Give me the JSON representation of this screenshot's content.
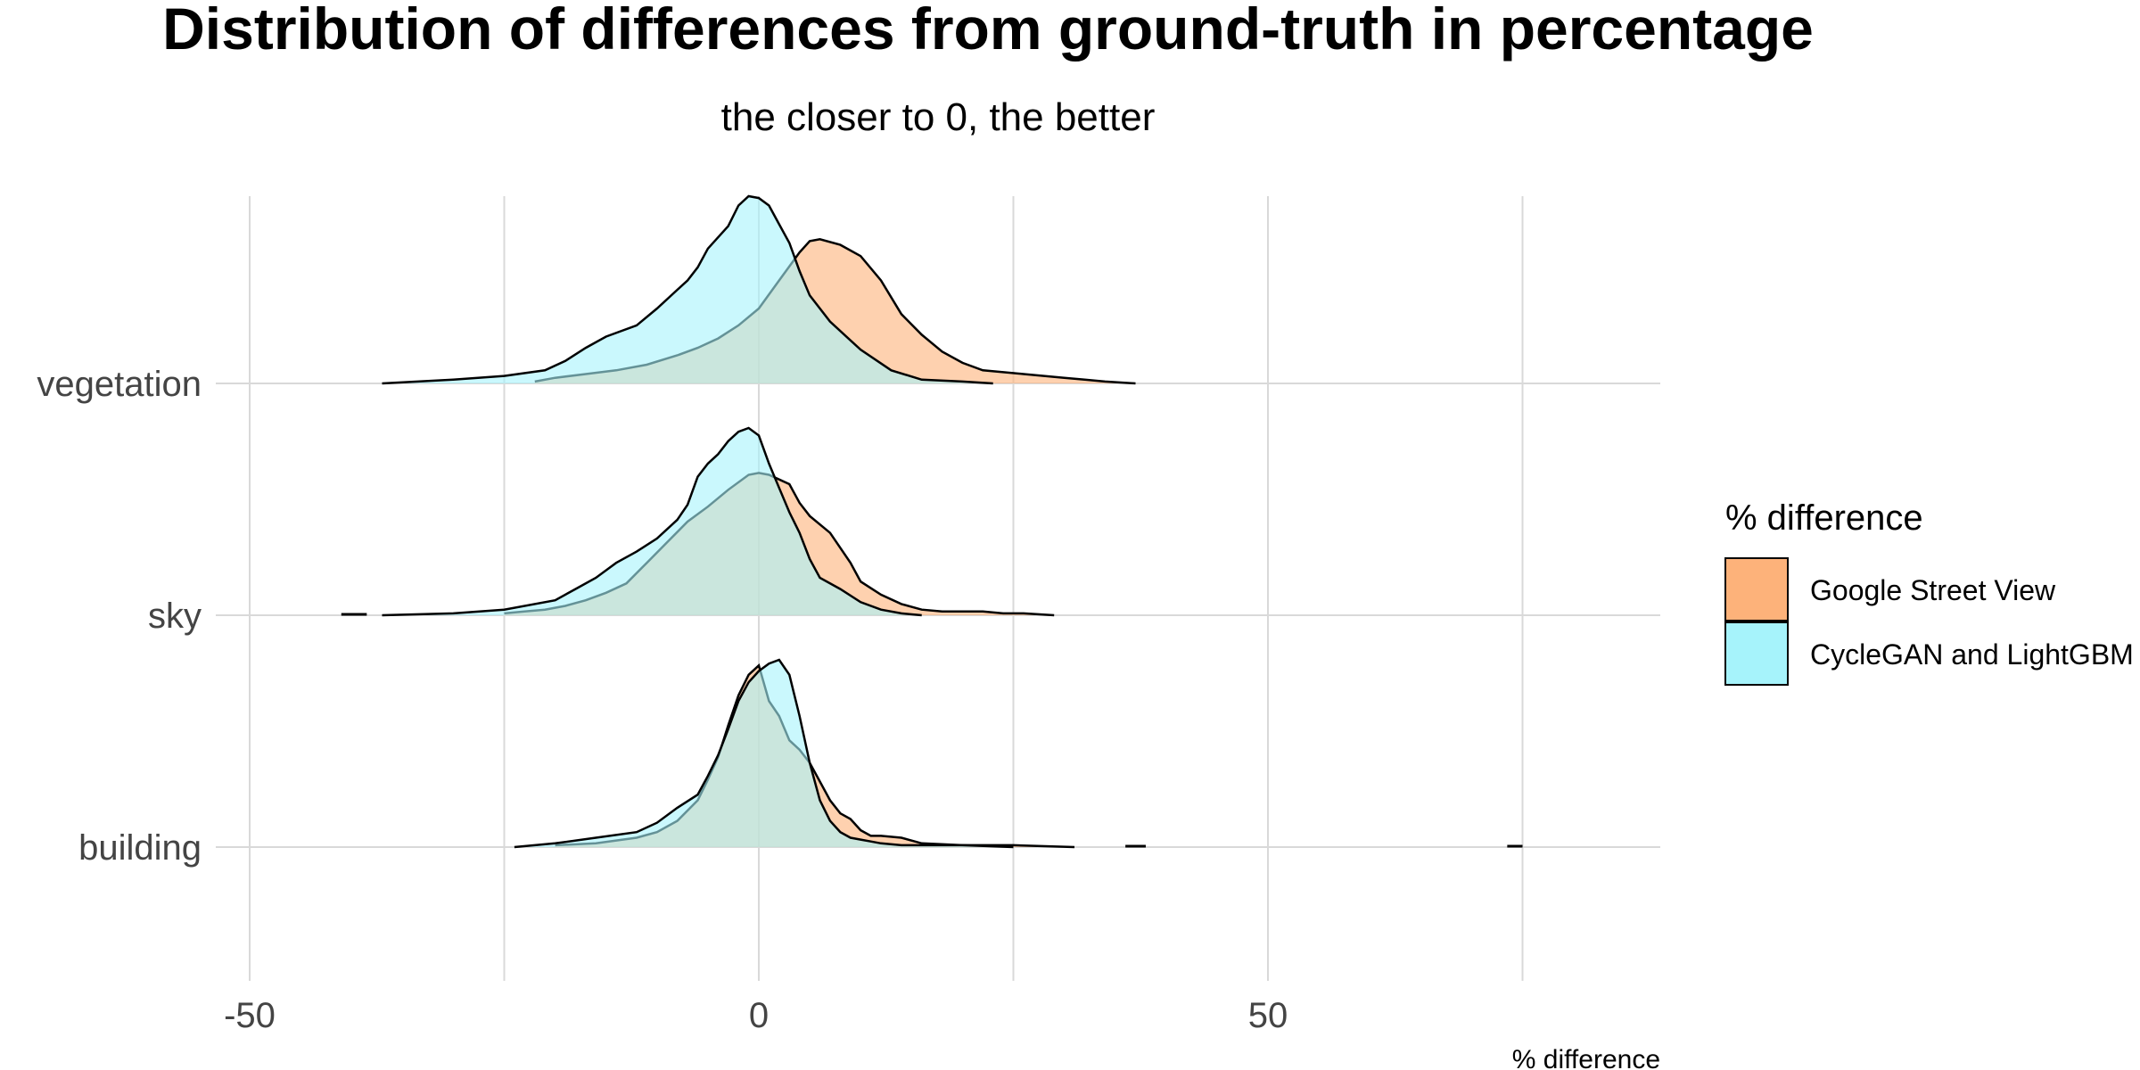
{
  "chart_data": {
    "type": "ridgeline",
    "title": "Distribution of differences from ground-truth in percentage",
    "subtitle": "the closer to 0, the better",
    "xlabel": "% difference",
    "ylabel": "",
    "xlim": [
      -50,
      85
    ],
    "x_ticks": [
      -50,
      0,
      50
    ],
    "x_tick_labels": [
      "-50",
      "0",
      "50"
    ],
    "categories": [
      "vegetation",
      "sky",
      "building"
    ],
    "grid": true,
    "legend": {
      "title": "% difference",
      "position": "right",
      "entries": [
        "Google Street View",
        "CycleGAN and LightGBM"
      ]
    },
    "colors": {
      "Google Street View": "#fdb27a",
      "CycleGAN and LightGBM": "#a6f3fb",
      "overlap": "#c9ddc6",
      "outline": "#000000",
      "grid": "#d9d9d9"
    },
    "series": [
      {
        "name": "Google Street View",
        "densities": {
          "vegetation": {
            "x": [
              -22,
              -20,
              -17,
              -14,
              -11,
              -8,
              -6,
              -4,
              -2,
              0,
              2,
              4,
              5,
              6,
              8,
              10,
              12,
              14,
              16,
              18,
              20,
              22,
              24,
              26,
              28,
              30,
              32,
              34,
              37
            ],
            "y": [
              0.01,
              0.03,
              0.05,
              0.07,
              0.1,
              0.15,
              0.19,
              0.24,
              0.31,
              0.4,
              0.55,
              0.7,
              0.76,
              0.77,
              0.74,
              0.68,
              0.55,
              0.37,
              0.26,
              0.17,
              0.11,
              0.07,
              0.06,
              0.05,
              0.04,
              0.03,
              0.02,
              0.01,
              0
            ]
          },
          "sky": {
            "x": [
              -25,
              -23,
              -21,
              -19,
              -17,
              -15,
              -13,
              -11,
              -9,
              -7,
              -5,
              -3,
              -1,
              0,
              1,
              3,
              4,
              5,
              7,
              9,
              10,
              12,
              14,
              16,
              18,
              20,
              22,
              24,
              26,
              29
            ],
            "y": [
              0.01,
              0.02,
              0.03,
              0.05,
              0.08,
              0.12,
              0.17,
              0.28,
              0.39,
              0.5,
              0.58,
              0.67,
              0.75,
              0.76,
              0.75,
              0.7,
              0.6,
              0.53,
              0.44,
              0.28,
              0.18,
              0.11,
              0.06,
              0.03,
              0.02,
              0.02,
              0.02,
              0.01,
              0.01,
              0
            ]
          },
          "building": {
            "x": [
              -20,
              -16,
              -12,
              -10,
              -8,
              -6,
              -5,
              -4,
              -3,
              -2,
              -1,
              0,
              1,
              2,
              3,
              4,
              5,
              6,
              7,
              8,
              9,
              10,
              11,
              12,
              14,
              16,
              20,
              25,
              31
            ],
            "y": [
              0.01,
              0.02,
              0.05,
              0.08,
              0.14,
              0.25,
              0.36,
              0.48,
              0.65,
              0.81,
              0.92,
              0.97,
              0.78,
              0.7,
              0.57,
              0.52,
              0.45,
              0.35,
              0.25,
              0.18,
              0.15,
              0.09,
              0.06,
              0.06,
              0.05,
              0.02,
              0.01,
              0.01,
              0
            ]
          }
        }
      },
      {
        "name": "CycleGAN and LightGBM",
        "densities": {
          "vegetation": {
            "x": [
              -37,
              -30,
              -25,
              -21,
              -19,
              -17,
              -15,
              -12,
              -10,
              -8,
              -7,
              -6,
              -5,
              -4,
              -3,
              -2,
              -1,
              0,
              1,
              2,
              3,
              4,
              5,
              7,
              10,
              13,
              16,
              20,
              23
            ],
            "y": [
              0,
              0.02,
              0.04,
              0.07,
              0.12,
              0.19,
              0.25,
              0.31,
              0.4,
              0.5,
              0.55,
              0.62,
              0.72,
              0.78,
              0.84,
              0.95,
              1.0,
              0.99,
              0.95,
              0.85,
              0.75,
              0.6,
              0.47,
              0.33,
              0.18,
              0.07,
              0.02,
              0.01,
              0
            ]
          },
          "sky": {
            "x": [
              -37,
              -30,
              -25,
              -20,
              -18,
              -16,
              -14,
              -12,
              -10,
              -8,
              -7,
              -6,
              -5,
              -4,
              -3,
              -2,
              -1,
              0,
              1,
              2,
              3,
              4,
              5,
              6,
              8,
              10,
              12,
              14,
              16
            ],
            "y": [
              0,
              0.01,
              0.03,
              0.08,
              0.14,
              0.2,
              0.28,
              0.34,
              0.41,
              0.51,
              0.59,
              0.74,
              0.81,
              0.86,
              0.93,
              0.98,
              1.0,
              0.96,
              0.81,
              0.68,
              0.55,
              0.44,
              0.3,
              0.2,
              0.14,
              0.07,
              0.03,
              0.01,
              0
            ]
          },
          "building": {
            "x": [
              -24,
              -20,
              -16,
              -12,
              -10,
              -8,
              -6,
              -5,
              -4,
              -3,
              -2,
              -1,
              0,
              1,
              2,
              3,
              4,
              5,
              6,
              7,
              8,
              9,
              10,
              11,
              12,
              14,
              16,
              20,
              25
            ],
            "y": [
              0,
              0.02,
              0.05,
              0.08,
              0.13,
              0.21,
              0.28,
              0.38,
              0.49,
              0.63,
              0.78,
              0.88,
              0.94,
              0.98,
              1.0,
              0.92,
              0.7,
              0.45,
              0.25,
              0.14,
              0.08,
              0.05,
              0.04,
              0.03,
              0.02,
              0.01,
              0.01,
              0.01,
              0
            ]
          }
        }
      }
    ]
  }
}
